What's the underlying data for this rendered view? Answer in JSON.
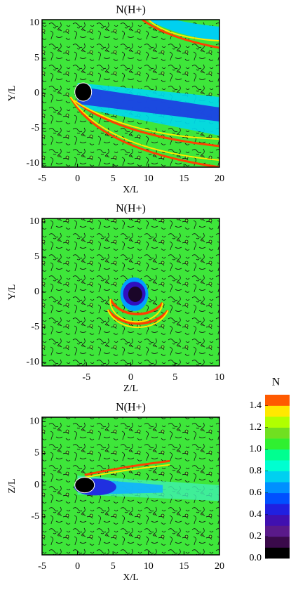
{
  "chart_data": [
    {
      "type": "contour",
      "title": "N(H+)",
      "xlabel": "X/L",
      "ylabel": "Y/L",
      "xlim": [
        -5,
        20
      ],
      "ylim": [
        -10.5,
        10.5
      ],
      "xticks": [
        -5,
        0,
        5,
        10,
        15,
        20
      ],
      "yticks": [
        -10,
        -5,
        0,
        5,
        10
      ]
    },
    {
      "type": "contour",
      "title": "N(H+)",
      "xlabel": "Z/L",
      "ylabel": "Y/L",
      "xlim": [
        -10,
        10
      ],
      "ylim": [
        -10.5,
        10.5
      ],
      "xticks": [
        -5,
        0,
        5,
        10
      ],
      "yticks": [
        -10,
        -5,
        0,
        5,
        10
      ]
    },
    {
      "type": "contour",
      "title": "N(H+)",
      "xlabel": "X/L",
      "ylabel": "Z/L",
      "xlim": [
        -5,
        20
      ],
      "ylim": [
        -11,
        10.7
      ],
      "xticks": [
        -5,
        0,
        5,
        10,
        15,
        20
      ],
      "yticks": [
        -5,
        0,
        5,
        10
      ]
    },
    {
      "type": "colorbar",
      "title": "N",
      "clim": [
        0,
        1.5
      ],
      "colors": [
        "#000000",
        "#3a0a4a",
        "#5a1a8a",
        "#4010b0",
        "#2020e0",
        "#0050ff",
        "#0090ff",
        "#00d0f0",
        "#00ffd0",
        "#00ff90",
        "#30f030",
        "#70e020",
        "#b0ff00",
        "#ffe800",
        "#ff5a00"
      ],
      "yticks": [
        {
          "value": 0,
          "label": "0.0"
        },
        {
          "value": 0.2,
          "label": "0.2"
        },
        {
          "value": 0.4,
          "label": "0.4"
        },
        {
          "value": 0.6,
          "label": "0.6"
        },
        {
          "value": 0.8,
          "label": "0.8"
        },
        {
          "value": 1.0,
          "label": "1.0"
        },
        {
          "value": 1.2,
          "label": "1.2"
        },
        {
          "value": 1.4,
          "label": "1.4"
        }
      ]
    }
  ]
}
